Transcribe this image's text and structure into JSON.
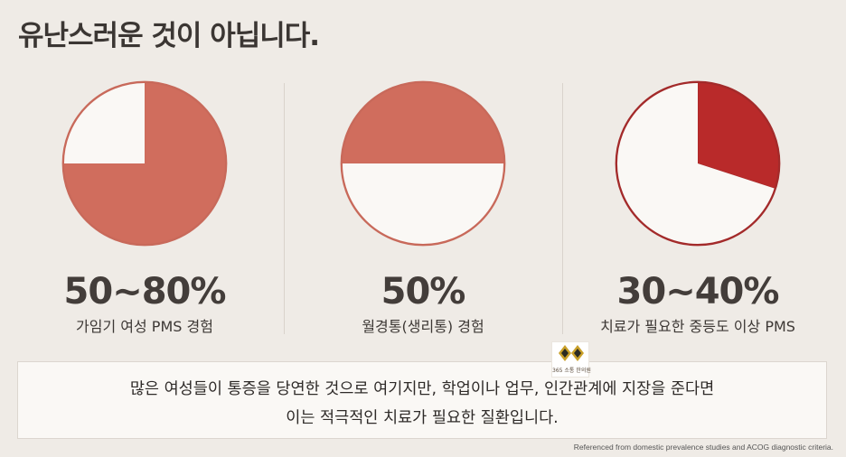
{
  "title": "유난스러운 것이 아닙니다.",
  "chart_data": [
    {
      "type": "pie",
      "slices": [
        {
          "value": 75,
          "color": "#d06d5d"
        },
        {
          "value": 25,
          "color": "#faf8f5"
        }
      ],
      "value_text": "50~80%",
      "label": "가임기 여성 PMS 경험",
      "ring_color": "#c8695a"
    },
    {
      "type": "pie",
      "slices": [
        {
          "value": 50,
          "color": "#d06d5d"
        },
        {
          "value": 50,
          "color": "#faf8f5"
        }
      ],
      "value_text": "50%",
      "label": "월경통(생리통) 경험",
      "ring_color": "#c8695a"
    },
    {
      "type": "pie",
      "slices": [
        {
          "value": 30,
          "color": "#b92a2a"
        },
        {
          "value": 70,
          "color": "#faf8f5"
        }
      ],
      "value_text": "30~40%",
      "label": "치료가 필요한 중등도 이상 PMS",
      "ring_color": "#a32a2a"
    }
  ],
  "note": {
    "line1": "많은 여성들이 통증을 당연한 것으로 여기지만, 학업이나 업무, 인간관계에 지장을 준다면",
    "line2": "이는 적극적인 치료가 필요한 질환입니다."
  },
  "logo": {
    "text": "365 소통 한의원",
    "colors": {
      "gold": "#c9a02a",
      "dark": "#2a2a22"
    }
  },
  "footnote": "Referenced from domestic prevalence studies and ACOG diagnostic criteria."
}
